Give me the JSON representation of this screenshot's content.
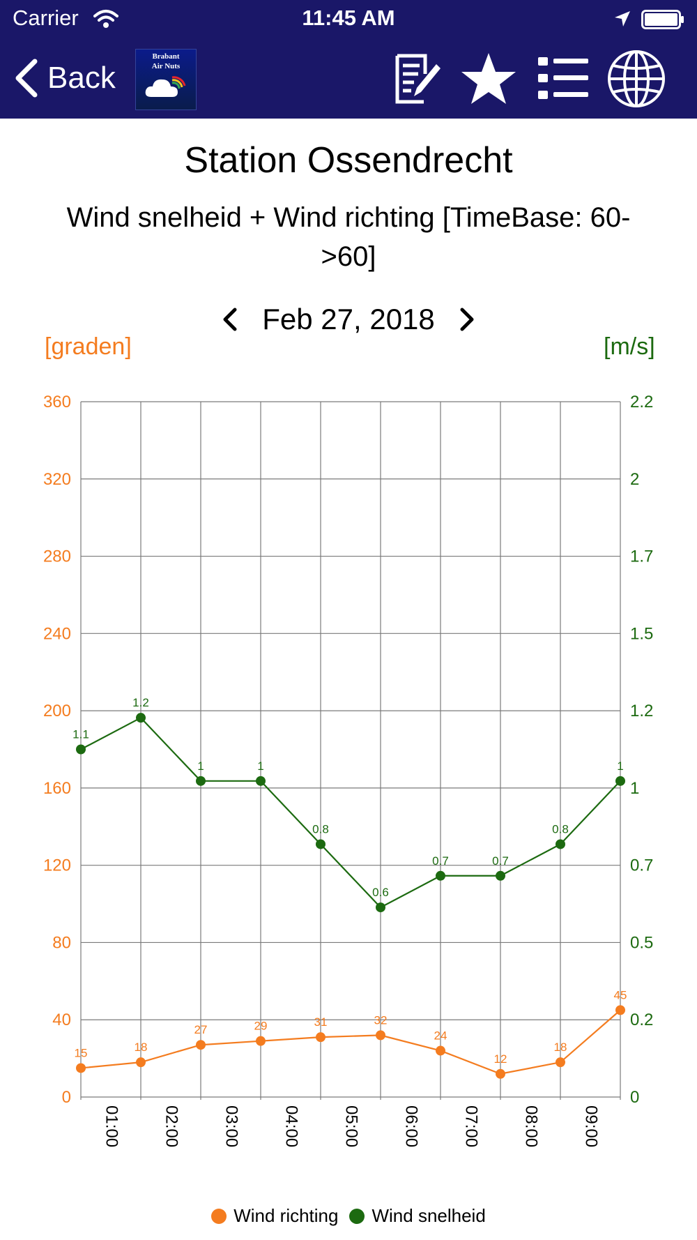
{
  "status_bar": {
    "carrier": "Carrier",
    "time": "11:45 AM"
  },
  "nav": {
    "back_label": "Back",
    "logo_text_line1": "Brabant",
    "logo_text_line2": "Air Nuts",
    "icons": [
      "edit-note-icon",
      "star-icon",
      "list-icon",
      "globe-icon"
    ]
  },
  "header": {
    "title": "Station Ossendrecht",
    "subtitle": "Wind snelheid + Wind richting [TimeBase: 60->60]",
    "date": "Feb 27, 2018"
  },
  "colors": {
    "nav_background": "#1a1768",
    "wind_richting": "#f47c1f",
    "wind_snelheid": "#1c6a10"
  },
  "chart_data": {
    "type": "line",
    "left_axis_label": "[graden]",
    "right_axis_label": "[m/s]",
    "x_ticks": [
      "01:00",
      "02:00",
      "03:00",
      "04:00",
      "05:00",
      "06:00",
      "07:00",
      "08:00",
      "09:00"
    ],
    "left_ylim": [
      0,
      360
    ],
    "left_ticks": [
      "0",
      "40",
      "80",
      "120",
      "160",
      "200",
      "240",
      "280",
      "320",
      "360"
    ],
    "right_ylim": [
      0,
      2.2
    ],
    "right_ticks": [
      "0",
      "0.2",
      "0.5",
      "0.7",
      "1",
      "1.2",
      "1.5",
      "1.7",
      "2",
      "2.2"
    ],
    "grid": true,
    "legend_position": "bottom-center",
    "series": [
      {
        "name": "Wind richting",
        "axis": "left",
        "color": "#f47c1f",
        "values": [
          15,
          18,
          27,
          29,
          31,
          32,
          24,
          12,
          18,
          45
        ],
        "labels": [
          "15",
          "18",
          "27",
          "29",
          "31",
          "32",
          "24",
          "12",
          "18",
          "45"
        ]
      },
      {
        "name": "Wind snelheid",
        "axis": "right",
        "color": "#1c6a10",
        "values": [
          1.1,
          1.2,
          1.0,
          1.0,
          0.8,
          0.6,
          0.7,
          0.7,
          0.8,
          1.0
        ],
        "labels": [
          "1.1",
          "1.2",
          "1",
          "1",
          "0.8",
          "0.6",
          "0.7",
          "0.7",
          "0.8",
          "1"
        ]
      }
    ]
  }
}
